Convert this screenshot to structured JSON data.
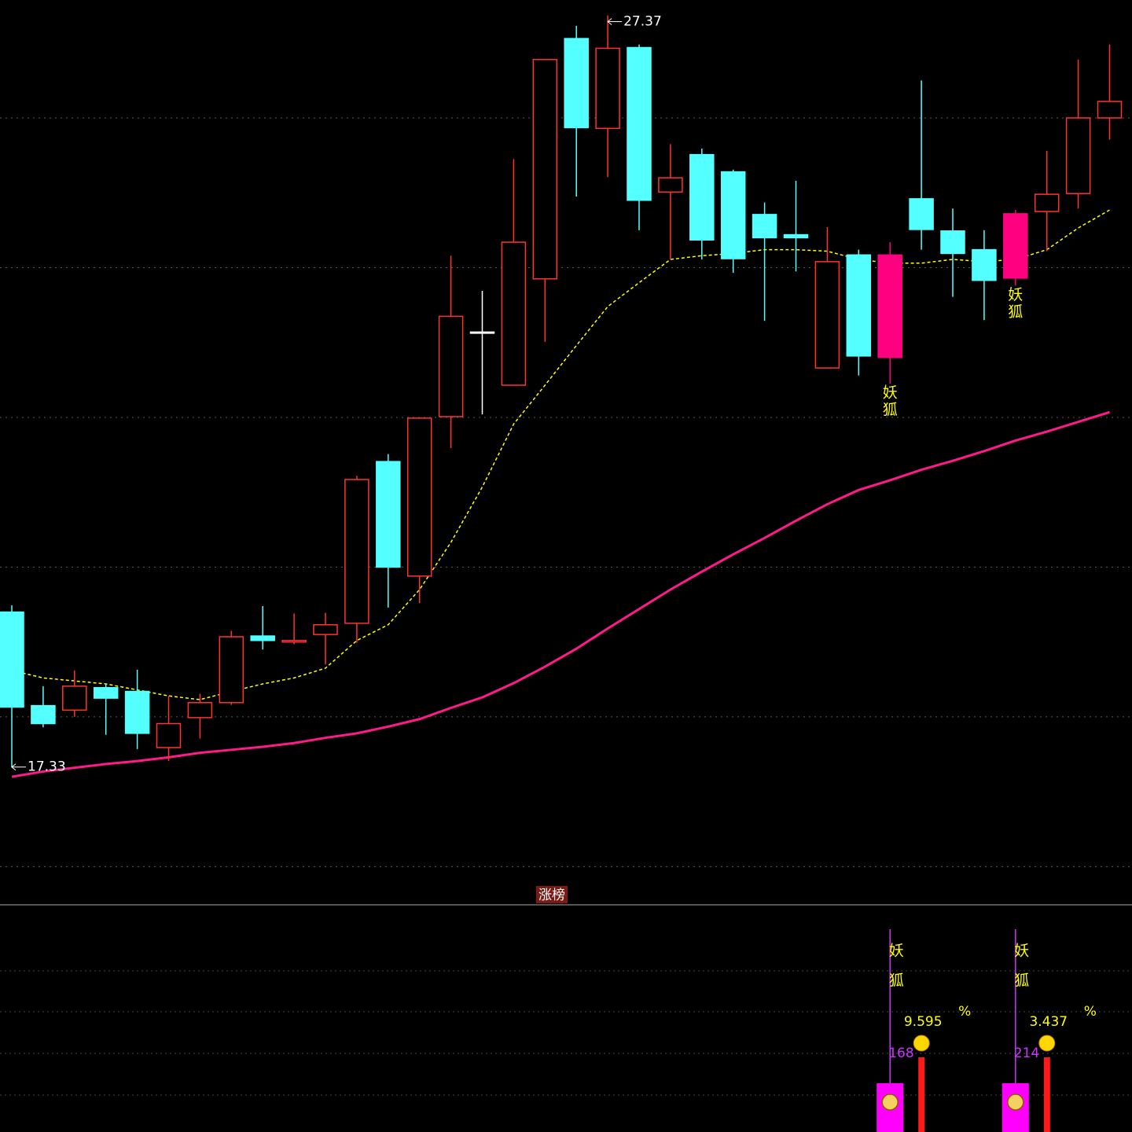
{
  "chart_data": {
    "type": "candlestick",
    "ylim": [
      15.5,
      27.575
    ],
    "yticks": [
      16,
      18,
      20,
      22,
      24,
      26
    ],
    "grid": true,
    "up_color": "#ff3232",
    "down_color": "#54ffff",
    "flat_color": "#ffffff",
    "signal_color": "#ff0080",
    "candles": [
      {
        "open": 19.4,
        "high": 19.49,
        "low": 17.33,
        "close": 18.13
      },
      {
        "open": 18.15,
        "high": 18.41,
        "low": 17.86,
        "close": 17.91
      },
      {
        "open": 18.09,
        "high": 18.62,
        "low": 18.0,
        "close": 18.41
      },
      {
        "open": 18.39,
        "high": 18.44,
        "low": 17.76,
        "close": 18.25
      },
      {
        "open": 18.34,
        "high": 18.63,
        "low": 17.57,
        "close": 17.78
      },
      {
        "open": 17.59,
        "high": 18.28,
        "low": 17.41,
        "close": 17.91
      },
      {
        "open": 17.99,
        "high": 18.31,
        "low": 17.71,
        "close": 18.19
      },
      {
        "open": 18.19,
        "high": 19.15,
        "low": 18.16,
        "close": 19.07
      },
      {
        "open": 19.08,
        "high": 19.48,
        "low": 18.9,
        "close": 19.02
      },
      {
        "open": 19.0,
        "high": 19.38,
        "low": 18.97,
        "close": 19.02
      },
      {
        "open": 19.1,
        "high": 19.39,
        "low": 18.7,
        "close": 19.23
      },
      {
        "open": 19.25,
        "high": 21.22,
        "low": 18.99,
        "close": 21.17
      },
      {
        "open": 21.41,
        "high": 21.51,
        "low": 19.46,
        "close": 20.0
      },
      {
        "open": 19.88,
        "high": 22.0,
        "low": 19.52,
        "close": 21.99
      },
      {
        "open": 22.01,
        "high": 24.16,
        "low": 21.59,
        "close": 23.35
      },
      {
        "open": 23.14,
        "high": 23.69,
        "low": 22.04,
        "close": 23.14
      },
      {
        "open": 22.43,
        "high": 25.45,
        "low": 22.43,
        "close": 24.34
      },
      {
        "open": 23.85,
        "high": 26.78,
        "low": 23.01,
        "close": 26.78
      },
      {
        "open": 27.06,
        "high": 27.23,
        "low": 24.95,
        "close": 25.87
      },
      {
        "open": 25.86,
        "high": 27.37,
        "low": 25.21,
        "close": 26.93
      },
      {
        "open": 26.94,
        "high": 26.98,
        "low": 24.5,
        "close": 24.9
      },
      {
        "open": 25.01,
        "high": 25.65,
        "low": 24.11,
        "close": 25.2
      },
      {
        "open": 25.51,
        "high": 25.59,
        "low": 24.11,
        "close": 24.37
      },
      {
        "open": 25.28,
        "high": 25.31,
        "low": 23.93,
        "close": 24.12
      },
      {
        "open": 24.71,
        "high": 24.87,
        "low": 23.29,
        "close": 24.4
      },
      {
        "open": 24.44,
        "high": 25.16,
        "low": 23.95,
        "close": 24.4
      },
      {
        "open": 22.66,
        "high": 24.54,
        "low": 22.66,
        "close": 24.08
      },
      {
        "open": 24.17,
        "high": 24.24,
        "low": 22.56,
        "close": 22.82
      },
      {
        "open": 22.8,
        "high": 24.34,
        "low": 22.45,
        "close": 24.17,
        "signal": true
      },
      {
        "open": 24.92,
        "high": 26.5,
        "low": 24.24,
        "close": 24.51
      },
      {
        "open": 24.49,
        "high": 24.79,
        "low": 23.61,
        "close": 24.19
      },
      {
        "open": 24.24,
        "high": 24.5,
        "low": 23.3,
        "close": 23.83
      },
      {
        "open": 23.86,
        "high": 24.77,
        "low": 23.76,
        "close": 24.72,
        "signal": true
      },
      {
        "open": 24.75,
        "high": 25.56,
        "low": 24.22,
        "close": 24.98
      },
      {
        "open": 24.99,
        "high": 26.78,
        "low": 24.79,
        "close": 26.0
      },
      {
        "open": 26.0,
        "high": 26.98,
        "low": 25.71,
        "close": 26.22
      }
    ],
    "lines": [
      {
        "color": "#ffff00",
        "style": "dashed",
        "values": [
          18.62,
          18.52,
          18.48,
          18.44,
          18.36,
          18.28,
          18.23,
          18.34,
          18.44,
          18.52,
          18.65,
          19.02,
          19.23,
          19.7,
          20.33,
          21.07,
          21.91,
          22.43,
          22.96,
          23.48,
          23.8,
          24.11,
          24.16,
          24.19,
          24.24,
          24.24,
          24.22,
          24.11,
          24.06,
          24.06,
          24.11,
          24.08,
          24.11,
          24.24,
          24.53,
          24.77
        ]
      },
      {
        "color": "#ff1a8c",
        "style": "solid",
        "values": [
          17.2,
          17.27,
          17.32,
          17.37,
          17.41,
          17.46,
          17.52,
          17.56,
          17.6,
          17.65,
          17.72,
          17.78,
          17.87,
          17.97,
          18.12,
          18.26,
          18.45,
          18.67,
          18.91,
          19.18,
          19.44,
          19.7,
          19.94,
          20.17,
          20.39,
          20.62,
          20.84,
          21.03,
          21.16,
          21.3,
          21.42,
          21.55,
          21.69,
          21.81,
          21.94,
          22.07
        ]
      }
    ],
    "signal_label": [
      "妖",
      "狐"
    ],
    "indicator": {
      "title": "涨榜",
      "items": [
        {
          "value": 9.595,
          "unit": "%",
          "amount": 168
        },
        {
          "value": 3.437,
          "unit": "%",
          "amount": 214
        }
      ]
    }
  }
}
